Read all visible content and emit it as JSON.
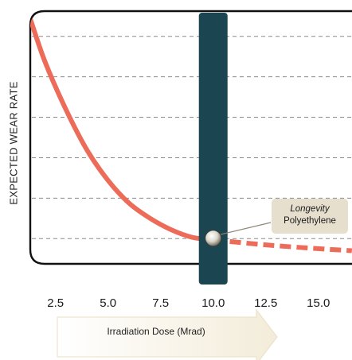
{
  "chart_data": {
    "type": "line",
    "xlabel": "Irradiation Dose (Mrad)",
    "ylabel": "EXPECTED WEAR RATE",
    "xlim": [
      1.3,
      16.6
    ],
    "ylim": [
      0,
      100
    ],
    "xticks": [
      "2.5",
      "5.0",
      "7.5",
      "10.0",
      "12.5",
      "15.0"
    ],
    "xtick_values": [
      2.5,
      5.0,
      7.5,
      10.0,
      12.5,
      15.0
    ],
    "grid": true,
    "series": [
      {
        "style": "solid",
        "x": [
          1.3,
          2.0,
          3.0,
          4.0,
          5.0,
          6.0,
          7.0,
          8.0,
          9.0,
          10.0
        ],
        "y": [
          97,
          80,
          61,
          45,
          33,
          24,
          18,
          13.5,
          10.5,
          9.5
        ]
      },
      {
        "style": "dashed",
        "x": [
          10.0,
          12.5,
          15.0,
          16.6
        ],
        "y": [
          9.5,
          7.5,
          6.0,
          5.2
        ]
      }
    ],
    "highlight": {
      "x": 10.0,
      "color": "#1b4651"
    },
    "marker": {
      "x": 10.0,
      "y": 9.5
    },
    "annotation": {
      "italic": "Longevity",
      "text": "Polyethylene"
    },
    "colors": {
      "line": "#ec6b59",
      "band": "#1b4651",
      "grid": "#8a8a8a",
      "frame": "#111111",
      "callout_bg": "#e7dfce"
    }
  }
}
